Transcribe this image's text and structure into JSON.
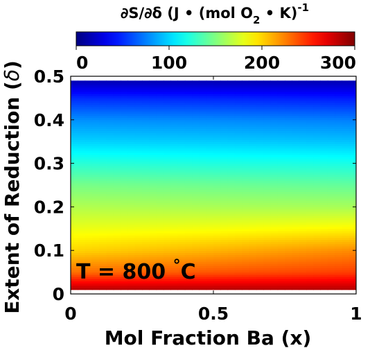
{
  "chart_data": {
    "type": "heatmap",
    "colorbar": {
      "label_prefix": "∂S/∂δ (J • (mol O",
      "label_sub": "2",
      "label_suffix": " • K)",
      "label_sup": "-1",
      "range": [
        0,
        300
      ],
      "ticks": [
        "0",
        "100",
        "200",
        "300"
      ],
      "colormap": "jet"
    },
    "xlabel": "Mol Fraction Ba (x)",
    "ylabel_prefix": "Extent of Reduction (",
    "ylabel_symbol": "δ",
    "ylabel_suffix": ")",
    "xlim": [
      0,
      1
    ],
    "ylim": [
      0,
      0.5
    ],
    "xticks": [
      {
        "value": 0,
        "label": "0"
      },
      {
        "value": 0.5,
        "label": "0.5"
      },
      {
        "value": 1,
        "label": "1"
      }
    ],
    "yticks": [
      {
        "value": 0,
        "label": "0"
      },
      {
        "value": 0.1,
        "label": "0.1"
      },
      {
        "value": 0.2,
        "label": "0.2"
      },
      {
        "value": 0.3,
        "label": "0.3"
      },
      {
        "value": 0.4,
        "label": "0.4"
      },
      {
        "value": 0.5,
        "label": "0.5"
      }
    ],
    "data_extent": {
      "y": [
        0.01,
        0.49
      ]
    },
    "annotation": {
      "prefix": "T = 800 ",
      "degree": "°",
      "suffix": "C"
    },
    "grid": false,
    "profiles": [
      {
        "x": 0,
        "delta": [
          0.01,
          0.05,
          0.1,
          0.15,
          0.2,
          0.25,
          0.3,
          0.35,
          0.4,
          0.45,
          0.49
        ],
        "dSdDelta": [
          285,
          230,
          200,
          182,
          165,
          148,
          125,
          100,
          80,
          50,
          15
        ]
      },
      {
        "x": 0.5,
        "delta": [
          0.01,
          0.05,
          0.1,
          0.15,
          0.2,
          0.25,
          0.3,
          0.35,
          0.4,
          0.45,
          0.49
        ],
        "dSdDelta": [
          285,
          238,
          210,
          185,
          163,
          145,
          122,
          98,
          78,
          48,
          15
        ]
      },
      {
        "x": 1,
        "delta": [
          0.01,
          0.05,
          0.1,
          0.15,
          0.2,
          0.25,
          0.3,
          0.35,
          0.4,
          0.45,
          0.49
        ],
        "dSdDelta": [
          285,
          245,
          222,
          190,
          162,
          142,
          120,
          95,
          75,
          45,
          15
        ]
      }
    ]
  }
}
